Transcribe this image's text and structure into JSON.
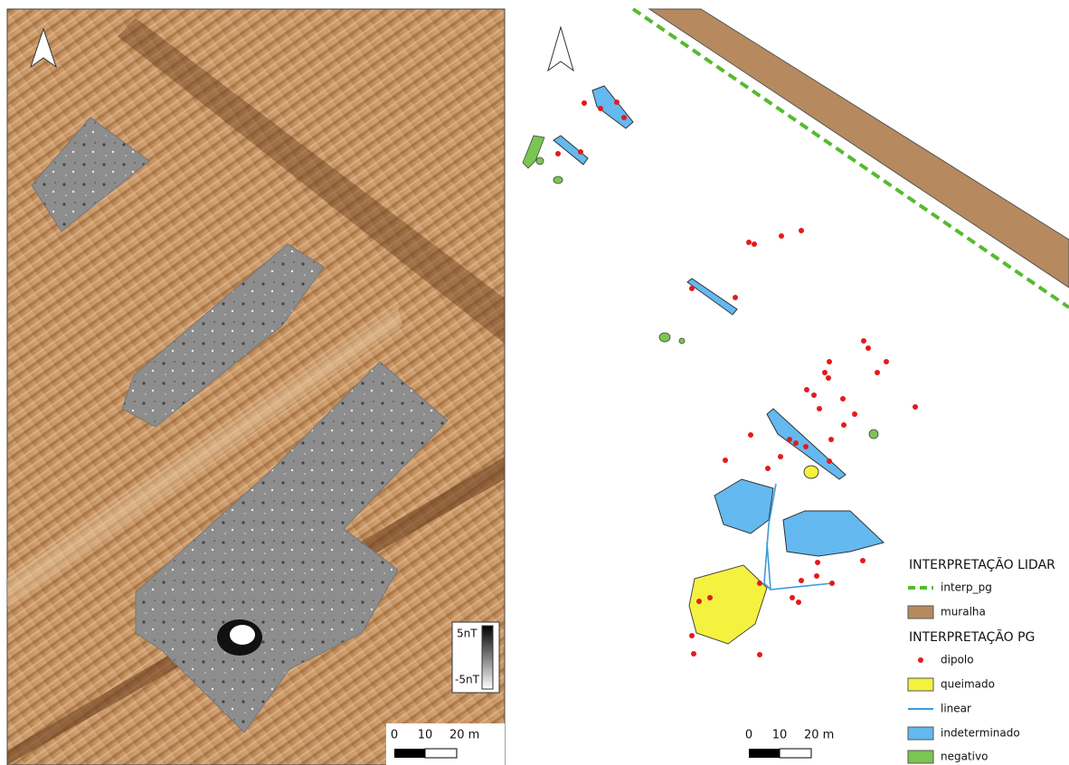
{
  "left_map": {
    "colorbar": {
      "max": "5nT",
      "min": "-5nT"
    },
    "scale_bar": [
      "0",
      "10",
      "20 m"
    ]
  },
  "right_map": {
    "scale_bar": [
      "0",
      "10",
      "20 m"
    ],
    "legend": {
      "lidar_title": "INTERPRETAÇÃO LIDAR",
      "lidar_items": [
        "interp_pg",
        "muralha"
      ],
      "pg_title": "INTERPRETAÇÃO PG",
      "pg_items": [
        "dipolo",
        "queimado",
        "linear",
        "indeterminado",
        "negativo"
      ]
    }
  }
}
